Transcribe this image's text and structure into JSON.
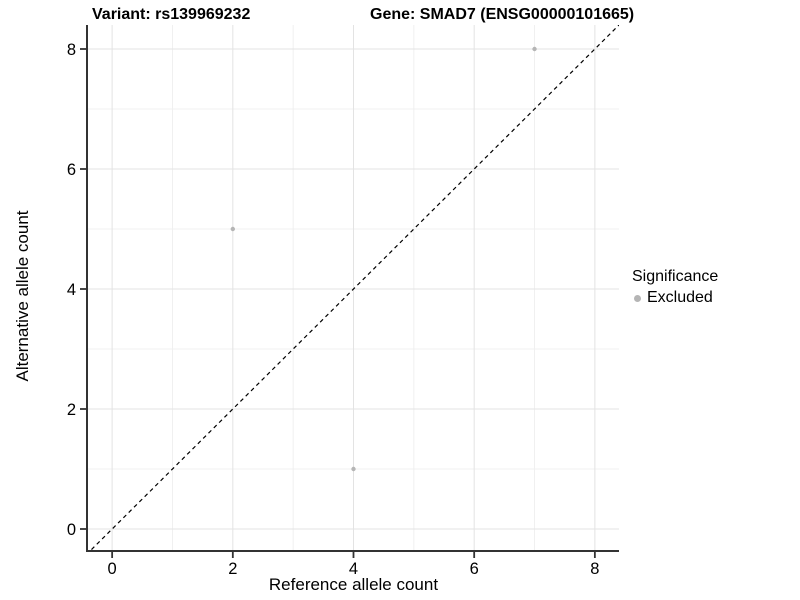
{
  "chart_data": {
    "type": "scatter",
    "title_left": "Variant: rs139969232",
    "title_right": "Gene: SMAD7 (ENSG00000101665)",
    "xlabel": "Reference allele count",
    "ylabel": "Alternative allele count",
    "xlim": [
      -0.4,
      8.4
    ],
    "ylim": [
      -0.35,
      8.4
    ],
    "x_ticks": [
      0,
      2,
      4,
      6,
      8
    ],
    "y_ticks": [
      0,
      2,
      4,
      6,
      8
    ],
    "x_minor_ticks": [
      1,
      3,
      5,
      7
    ],
    "y_minor_ticks": [
      1,
      3,
      5,
      7
    ],
    "grid": true,
    "series": [
      {
        "name": "Excluded",
        "color": "#b5b5b5",
        "point_radius": 2.2,
        "points": [
          {
            "x": 2,
            "y": 5
          },
          {
            "x": 4,
            "y": 1
          },
          {
            "x": 7,
            "y": 8
          }
        ]
      }
    ],
    "reference_line": {
      "type": "identity",
      "slope": 1,
      "intercept": 0,
      "linestyle": "dashed",
      "color": "#000000"
    },
    "legend": {
      "title": "Significance",
      "position": "right",
      "items": [
        {
          "label": "Excluded",
          "color": "#b5b5b5"
        }
      ]
    },
    "colors": {
      "background": "#ffffff",
      "grid_major": "#e3e3e3",
      "grid_minor": "#f0f0f0",
      "axis_line": "#333333",
      "tick": "#333333",
      "text": "#000000"
    }
  }
}
